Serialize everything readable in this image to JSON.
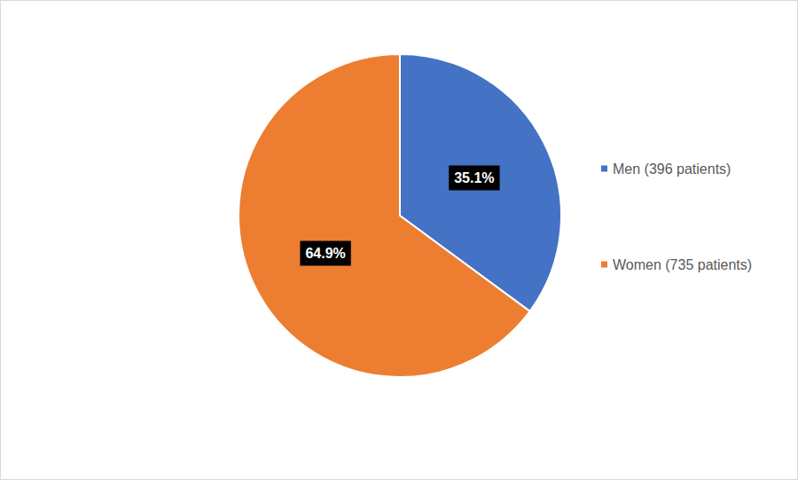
{
  "chart_data": {
    "type": "pie",
    "categories": [
      "Men (396 patients)",
      "Women (735 patients)"
    ],
    "values": [
      35.1,
      64.9
    ],
    "value_labels": [
      "35.1%",
      "64.9%"
    ],
    "colors": [
      "#4472c4",
      "#ed7d31"
    ],
    "legend": "right",
    "data_labels": true
  }
}
